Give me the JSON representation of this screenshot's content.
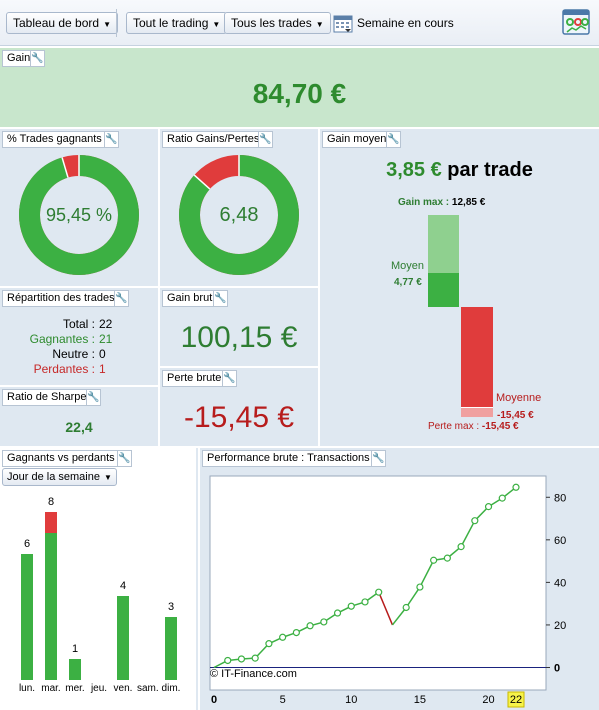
{
  "toolbar": {
    "dashboard_label": "Tableau de bord",
    "trading_label": "Tout le trading",
    "trades_label": "Tous les trades",
    "period_label": "Semaine en cours",
    "calendar_icon": "calendar-icon",
    "dashboard_icon": "dashboard-settings-icon"
  },
  "gain": {
    "title": "Gain",
    "value": "84,70 €"
  },
  "win_trades": {
    "title": "% Trades gagnants",
    "value": "95,45 %",
    "win_fraction": 0.9545
  },
  "ratio": {
    "title": "Ratio Gains/Pertes",
    "value": "6,48",
    "win_fraction": 0.866
  },
  "avg_gain": {
    "title": "Gain moyen",
    "value": "3,85 €",
    "suffix": " par trade",
    "max_gain_label": "Gain max :",
    "max_gain_value": "12,85 €",
    "avg_label": "Moyen",
    "avg_value": "4,77 €",
    "avg_loss_label": "Moyenne",
    "avg_loss_value": "-15,45 €",
    "max_loss_label": "Perte max :",
    "max_loss_value": "-15,45 €",
    "gain_bar": {
      "max": 12.85,
      "avg": 4.77
    },
    "loss_bar": {
      "max": 15.45,
      "avg": 15.45
    }
  },
  "distribution": {
    "title": "Répartition des trades",
    "rows": [
      {
        "label": "Total :",
        "value": "22",
        "color": "#000000"
      },
      {
        "label": "Gagnantes :",
        "value": "21",
        "color": "#2e8b2e"
      },
      {
        "label": "Neutre :",
        "value": "0",
        "color": "#000000"
      },
      {
        "label": "Perdantes :",
        "value": "1",
        "color": "#c62828"
      }
    ]
  },
  "gross_gain": {
    "title": "Gain brut",
    "value": "100,15 €"
  },
  "gross_loss": {
    "title": "Perte brute",
    "value": "-15,45 €"
  },
  "sharpe": {
    "title": "Ratio de Sharpe",
    "value": "22,4"
  },
  "winlose": {
    "title": "Gagnants vs perdants",
    "dropdown": "Jour de la semaine"
  },
  "performance": {
    "title": "Performance brute : Transactions",
    "copyright": "© IT-Finance.com"
  },
  "chart_data": [
    {
      "type": "bar",
      "stacked": true,
      "categories": [
        "lun.",
        "mar.",
        "mer.",
        "jeu.",
        "ven.",
        "sam.",
        "dim."
      ],
      "series": [
        {
          "values": [
            6,
            7,
            1,
            0,
            4,
            0,
            3
          ],
          "color": "#3cb043"
        },
        {
          "values": [
            0,
            1,
            0,
            0,
            0,
            0,
            0
          ],
          "color": "#e03c3c"
        }
      ],
      "totals": [
        6,
        8,
        1,
        0,
        4,
        0,
        3
      ],
      "ylim": [
        0,
        8
      ]
    },
    {
      "type": "line",
      "x": [
        0,
        1,
        2,
        3,
        4,
        5,
        6,
        7,
        8,
        9,
        10,
        11,
        12,
        13,
        14,
        15,
        16,
        17,
        18,
        19,
        20,
        21,
        22
      ],
      "y": [
        0,
        3.3,
        4,
        4.4,
        11.2,
        14.2,
        16.4,
        19.6,
        21.4,
        25.6,
        28.8,
        30.8,
        35.4,
        20.0,
        28.2,
        37.8,
        50.4,
        51.4,
        56.8,
        69.0,
        75.6,
        79.6,
        84.7
      ],
      "loss_index": 13,
      "xticks": [
        "0",
        "5",
        "10",
        "15",
        "20"
      ],
      "highlight_tick": "22",
      "yticks": [
        "80",
        "60",
        "40",
        "20",
        "0"
      ],
      "xlim": [
        0,
        22
      ],
      "ylim": [
        -4,
        90
      ],
      "line_color": "#3cb043",
      "loss_color": "#b71c1c"
    }
  ]
}
